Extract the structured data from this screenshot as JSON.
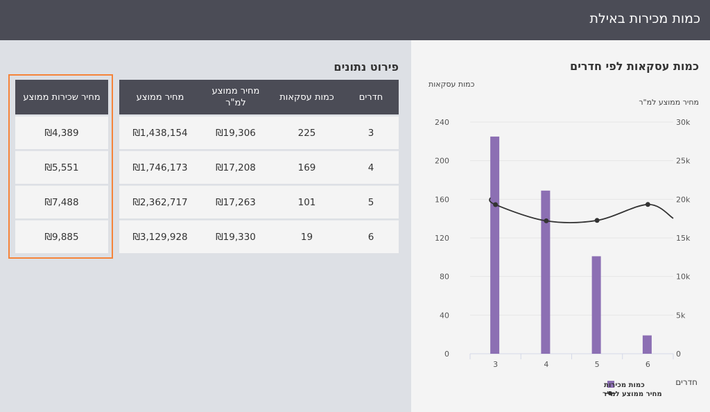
{
  "header": {
    "title": "כמות מכירות באילת"
  },
  "details": {
    "title": "פירוט נתונים",
    "columns": [
      "חדרים",
      "כמות עסקאות",
      "מחיר ממוצע למ\"ר",
      "מחיר ממוצע"
    ],
    "rows": [
      [
        "3",
        "225",
        "₪19,306",
        "₪1,438,154"
      ],
      [
        "4",
        "169",
        "₪17,208",
        "₪1,746,173"
      ],
      [
        "5",
        "101",
        "₪17,263",
        "₪2,362,717"
      ],
      [
        "6",
        "19",
        "₪19,330",
        "₪3,129,928"
      ]
    ]
  },
  "rent": {
    "header": "מחיר שכירות ממוצע",
    "values": [
      "₪4,389",
      "₪5,551",
      "₪7,488",
      "₪9,885"
    ],
    "highlight_color": "#f5843a"
  },
  "chart_data": {
    "type": "bar",
    "title": "כמות עסקאות לפי חדרים",
    "xlabel": "חדרים",
    "ylabel": "כמות עסקאות",
    "y2label": "מחיר ממוצע למ\"ר",
    "categories": [
      "3",
      "4",
      "5",
      "6"
    ],
    "ylim": [
      0,
      240
    ],
    "y_ticks": [
      0,
      40,
      80,
      120,
      160,
      200,
      240
    ],
    "y2lim": [
      0,
      30000
    ],
    "y2_ticks": [
      0,
      5000,
      10000,
      15000,
      20000,
      25000,
      30000
    ],
    "y2_tick_labels": [
      "0",
      "5k",
      "10k",
      "15k",
      "20k",
      "25k",
      "30k"
    ],
    "grid": true,
    "series": [
      {
        "name": "כמות מכירות",
        "type": "bar",
        "axis": "left",
        "color": "#8c6fb3",
        "values": [
          225,
          169,
          101,
          19
        ]
      },
      {
        "name": "מחיר ממוצע למ\"ר",
        "type": "line",
        "axis": "right",
        "color": "#333333",
        "values": [
          19306,
          17208,
          17263,
          19330
        ]
      }
    ],
    "legend_position": "bottom"
  }
}
